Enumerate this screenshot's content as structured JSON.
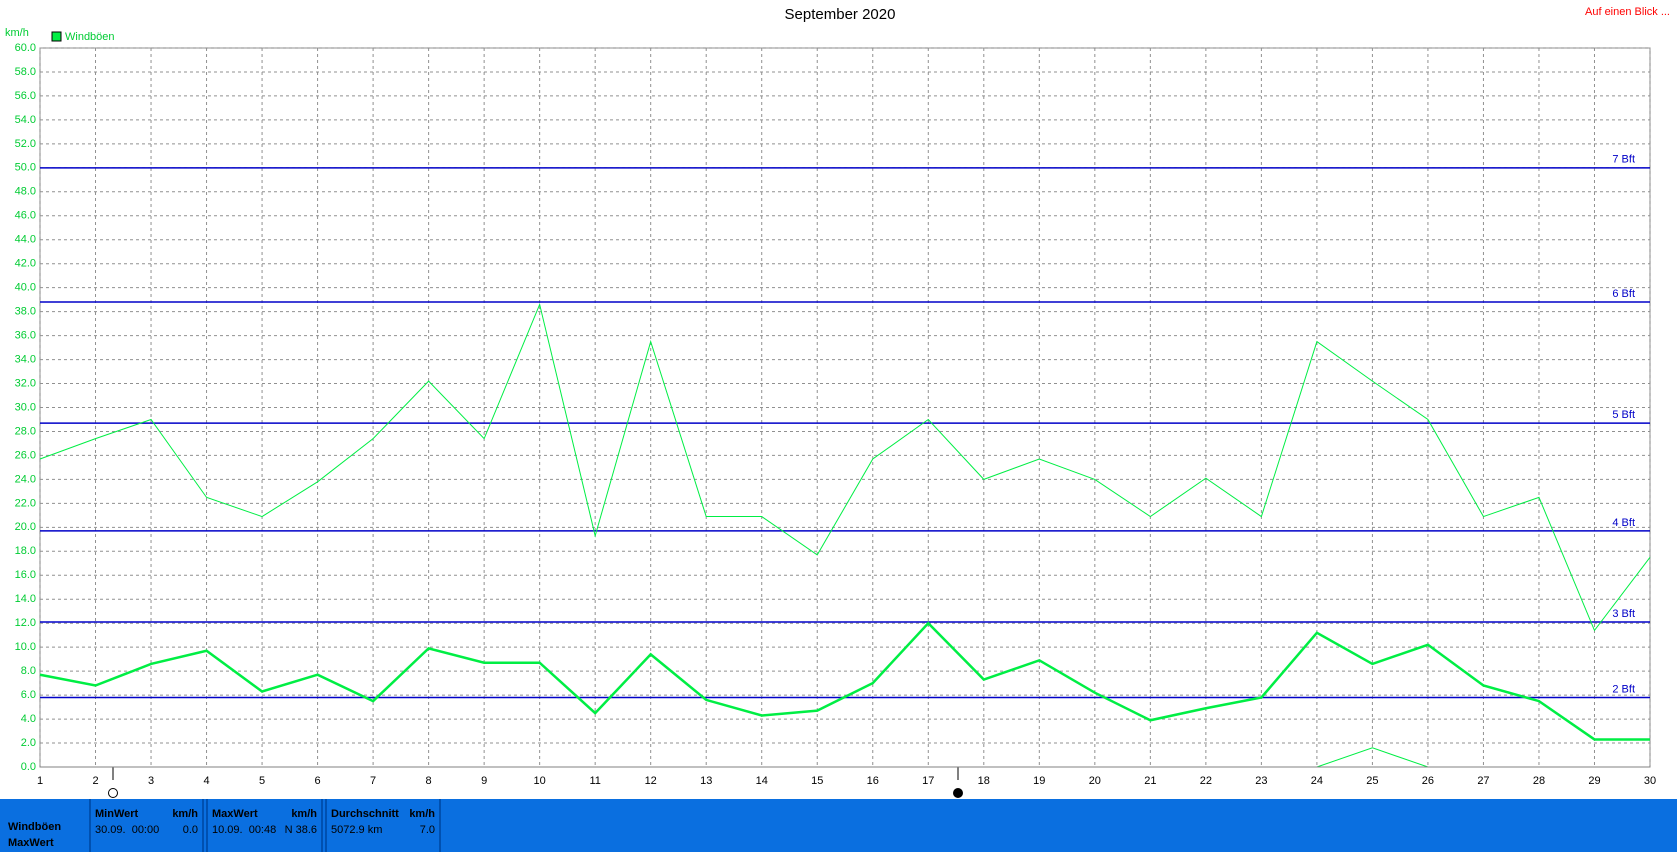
{
  "header_link": "Auf einen Blick ...",
  "chart_data": {
    "type": "line",
    "title": "September 2020",
    "y_label": "km/h",
    "legend": "top-left",
    "grid": true,
    "x": [
      1,
      2,
      3,
      4,
      5,
      6,
      7,
      8,
      9,
      10,
      11,
      12,
      13,
      14,
      15,
      16,
      17,
      18,
      19,
      20,
      21,
      22,
      23,
      24,
      25,
      26,
      27,
      28,
      29,
      30
    ],
    "xlim": [
      1,
      30
    ],
    "xticks": [
      1,
      2,
      3,
      4,
      5,
      6,
      7,
      8,
      9,
      10,
      11,
      12,
      13,
      14,
      15,
      16,
      17,
      18,
      19,
      20,
      21,
      22,
      23,
      24,
      25,
      26,
      27,
      28,
      29,
      30
    ],
    "ylim": [
      0,
      60
    ],
    "yticks": [
      {
        "value": 0,
        "label": "0.0"
      },
      {
        "value": 2,
        "label": "2.0"
      },
      {
        "value": 4,
        "label": "4.0"
      },
      {
        "value": 6,
        "label": "6.0"
      },
      {
        "value": 8,
        "label": "8.0"
      },
      {
        "value": 10,
        "label": "10.0"
      },
      {
        "value": 12,
        "label": "12.0"
      },
      {
        "value": 14,
        "label": "14.0"
      },
      {
        "value": 16,
        "label": "16.0"
      },
      {
        "value": 18,
        "label": "18.0"
      },
      {
        "value": 20,
        "label": "20.0"
      },
      {
        "value": 22,
        "label": "22.0"
      },
      {
        "value": 24,
        "label": "24.0"
      },
      {
        "value": 26,
        "label": "26.0"
      },
      {
        "value": 28,
        "label": "28.0"
      },
      {
        "value": 30,
        "label": "30.0"
      },
      {
        "value": 32,
        "label": "32.0"
      },
      {
        "value": 34,
        "label": "34.0"
      },
      {
        "value": 36,
        "label": "36.0"
      },
      {
        "value": 38,
        "label": "38.0"
      },
      {
        "value": 40,
        "label": "40.0"
      },
      {
        "value": 42,
        "label": "42.0"
      },
      {
        "value": 44,
        "label": "44.0"
      },
      {
        "value": 46,
        "label": "46.0"
      },
      {
        "value": 48,
        "label": "48.0"
      },
      {
        "value": 50,
        "label": "50.0"
      },
      {
        "value": 52,
        "label": "52.0"
      },
      {
        "value": 54,
        "label": "54.0"
      },
      {
        "value": 56,
        "label": "56.0"
      },
      {
        "value": 58,
        "label": "58.0"
      },
      {
        "value": 60,
        "label": "60.0"
      }
    ],
    "series": [
      {
        "name": "Windböen",
        "color": "#00ee44",
        "width": 1,
        "values": [
          25.7,
          27.4,
          29.0,
          22.5,
          20.9,
          23.8,
          27.4,
          32.2,
          27.4,
          38.6,
          19.3,
          35.5,
          20.9,
          20.9,
          17.7,
          25.7,
          29.0,
          24.0,
          25.7,
          24.0,
          20.9,
          24.1,
          20.9,
          35.5,
          32.2,
          29.0,
          20.9,
          22.5,
          11.4,
          17.5
        ]
      },
      {
        "color": "#00ee44",
        "width": 2.5,
        "values": [
          7.7,
          6.8,
          8.6,
          9.7,
          6.3,
          7.7,
          5.5,
          9.9,
          8.7,
          8.7,
          4.5,
          9.4,
          5.6,
          4.3,
          4.7,
          7.0,
          12.0,
          7.3,
          8.9,
          6.2,
          3.9,
          4.9,
          5.8,
          11.2,
          8.6,
          10.2,
          6.8,
          5.5,
          2.3,
          2.3
        ]
      },
      {
        "color": "#00ee44",
        "width": 1,
        "values": [
          0,
          0,
          0,
          0,
          0,
          0,
          0,
          0,
          0,
          0,
          0,
          0,
          0,
          0,
          0,
          0,
          0,
          0,
          0,
          0,
          0,
          0,
          0,
          0,
          1.6,
          0,
          0,
          0,
          0,
          0
        ]
      }
    ],
    "reference_lines": [
      {
        "value": 50.0,
        "label": "7 Bft"
      },
      {
        "value": 38.8,
        "label": "6 Bft"
      },
      {
        "value": 28.7,
        "label": "5 Bft"
      },
      {
        "value": 19.7,
        "label": "4 Bft"
      },
      {
        "value": 12.1,
        "label": "3 Bft"
      },
      {
        "value": 5.8,
        "label": "2 Bft"
      }
    ],
    "reference_color": "#0000c8"
  },
  "table": {
    "row_labels": [
      "Windböen",
      "MaxWert"
    ],
    "columns": [
      {
        "header": "MinWert",
        "unit": "km/h",
        "time": "30.09.  00:00",
        "value": "0.0"
      },
      {
        "header": "MaxWert",
        "unit": "km/h",
        "time": "10.09.  00:48",
        "value": "N 38.6"
      },
      {
        "header": "Durchschnitt",
        "unit": "km/h",
        "time": "5072.9 km",
        "value": "7.0"
      }
    ]
  }
}
